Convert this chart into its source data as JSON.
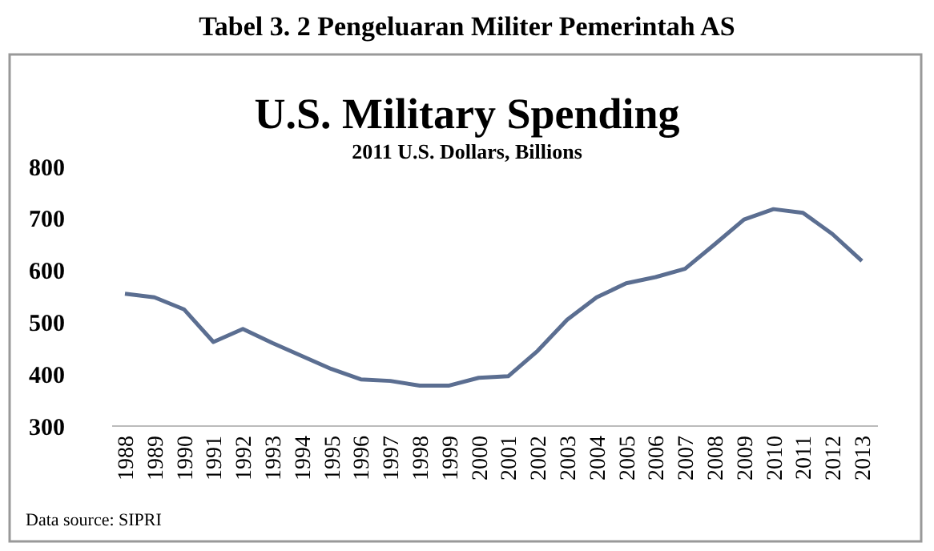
{
  "chart_data": {
    "type": "line",
    "title": "U.S. Military Spending",
    "subtitle": "2011 U.S. Dollars, Billions",
    "annotations": [
      "Tabel 3. 2 Pengeluaran Militer Pemerintah AS",
      "Data source: SIPRI"
    ],
    "categories": [
      "1988",
      "1989",
      "1990",
      "1991",
      "1992",
      "1993",
      "1994",
      "1995",
      "1996",
      "1997",
      "1998",
      "1999",
      "2000",
      "2001",
      "2002",
      "2003",
      "2004",
      "2005",
      "2006",
      "2007",
      "2008",
      "2009",
      "2010",
      "2011",
      "2012",
      "2013"
    ],
    "series": [
      {
        "color": "#5b6e91",
        "values": [
          555,
          548,
          525,
          462,
          487,
          460,
          435,
          410,
          390,
          387,
          378,
          378,
          393,
          396,
          445,
          505,
          548,
          575,
          587,
          603,
          650,
          698,
          718,
          711,
          670,
          618
        ]
      }
    ],
    "ylim": [
      300,
      800
    ],
    "yticks": [
      300,
      400,
      500,
      600,
      700,
      800
    ],
    "grid": false,
    "marker": "none",
    "line_style": "solid"
  }
}
